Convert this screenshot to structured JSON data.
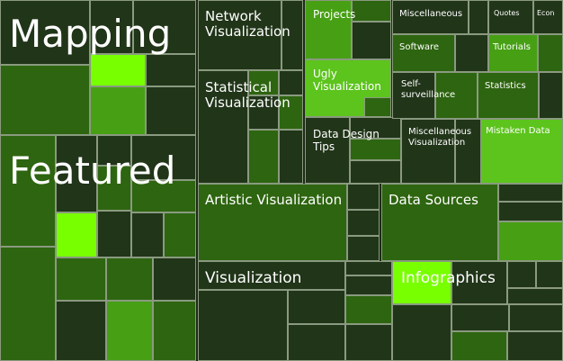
{
  "blocks": [
    {
      "label": "Mapping"
    },
    {
      "label": "Featured"
    },
    {
      "label": "Network Visualization"
    },
    {
      "label": "Projects"
    },
    {
      "label": "Miscellaneous"
    },
    {
      "label": "Quotes"
    },
    {
      "label": "Econ"
    },
    {
      "label": "Software"
    },
    {
      "label": "Tutorials"
    },
    {
      "label": "Statistical Visualization"
    },
    {
      "label": "Ugly Visualization"
    },
    {
      "label": "Self-surveillance"
    },
    {
      "label": "Statistics"
    },
    {
      "label": "Data Design Tips"
    },
    {
      "label": "Miscellaneous Visualization"
    },
    {
      "label": "Mistaken Data"
    },
    {
      "label": "Artistic Visualization"
    },
    {
      "label": "Data Sources"
    },
    {
      "label": "Visualization"
    },
    {
      "label": "Infographics"
    }
  ]
}
